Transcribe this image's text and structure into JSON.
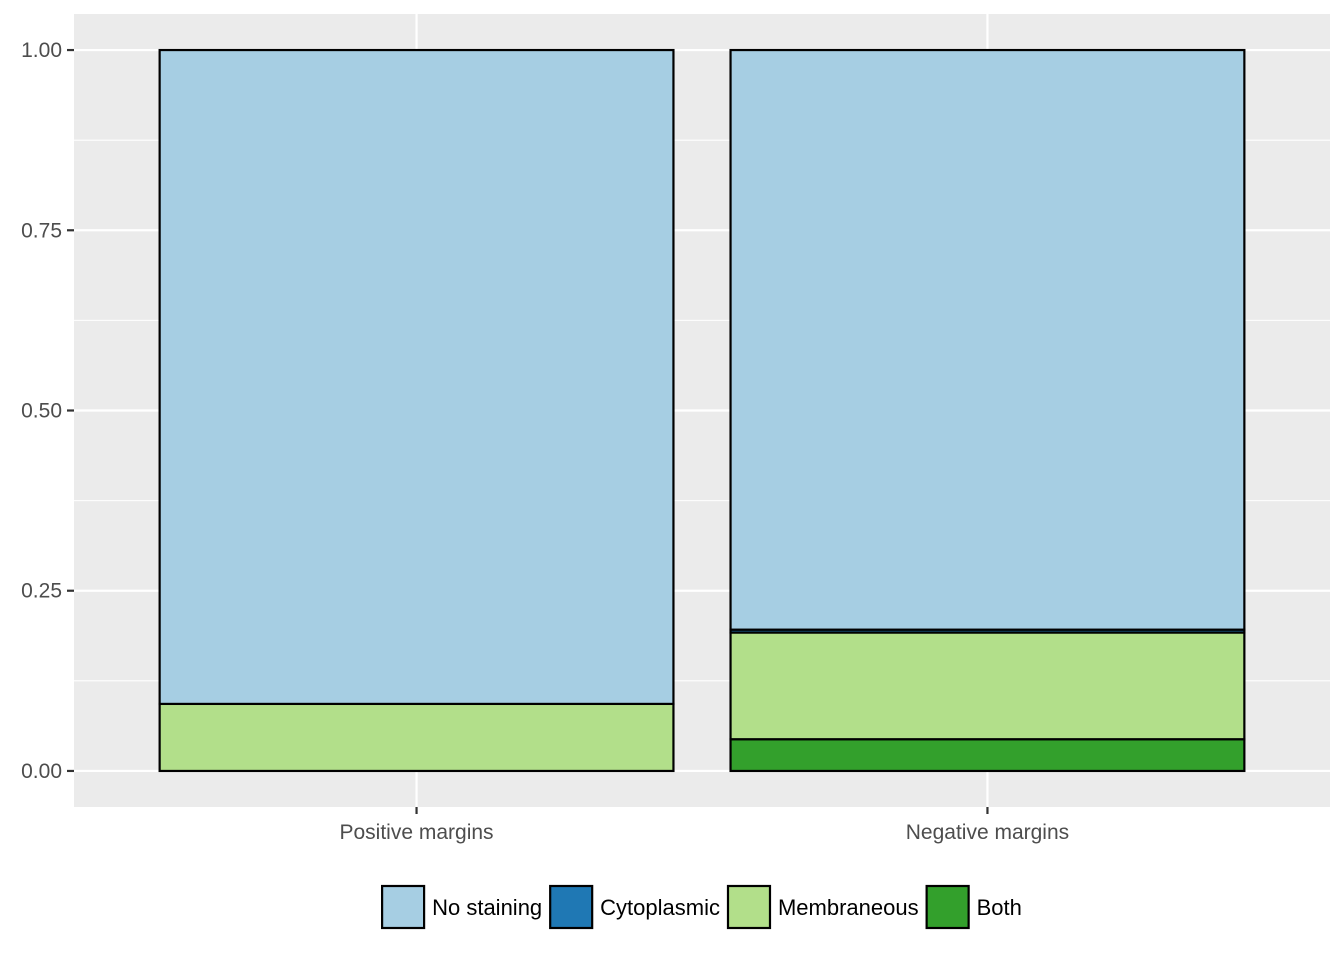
{
  "chart_data": {
    "type": "bar",
    "stacked": true,
    "categories": [
      "Positive margins",
      "Negative margins"
    ],
    "series": [
      {
        "name": "Both",
        "color": "#33A02C",
        "values": [
          0.0,
          0.044
        ]
      },
      {
        "name": "Membraneous",
        "color": "#B2DF8A",
        "values": [
          0.093,
          0.148
        ]
      },
      {
        "name": "Cytoplasmic",
        "color": "#1F78B4",
        "values": [
          0.0,
          0.004
        ]
      },
      {
        "name": "No staining",
        "color": "#A6CEE3",
        "values": [
          0.907,
          0.804
        ]
      }
    ],
    "legend_order": [
      "No staining",
      "Cytoplasmic",
      "Membraneous",
      "Both"
    ],
    "y_ticks": [
      "0.00",
      "0.25",
      "0.50",
      "0.75",
      "1.00"
    ],
    "y_tick_values": [
      0,
      0.25,
      0.5,
      0.75,
      1.0
    ],
    "ylim": [
      -0.05,
      1.05
    ],
    "title": "",
    "xlabel": "",
    "ylabel": "",
    "grid": true,
    "legend_position": "bottom",
    "panel_background": "#EBEBEB",
    "grid_color": "#FFFFFF",
    "bar_outline": "#000000"
  }
}
